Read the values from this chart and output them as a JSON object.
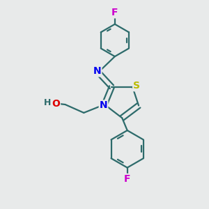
{
  "background_color": "#e8eaea",
  "bond_color": "#2d6b6b",
  "N_color": "#0000ee",
  "S_color": "#bbbb00",
  "O_color": "#dd0000",
  "F_color": "#cc00cc",
  "line_width": 1.6,
  "font_size": 10,
  "figsize": [
    3.0,
    3.0
  ],
  "dpi": 100,
  "xlim": [
    0,
    10
  ],
  "ylim": [
    0,
    10
  ]
}
